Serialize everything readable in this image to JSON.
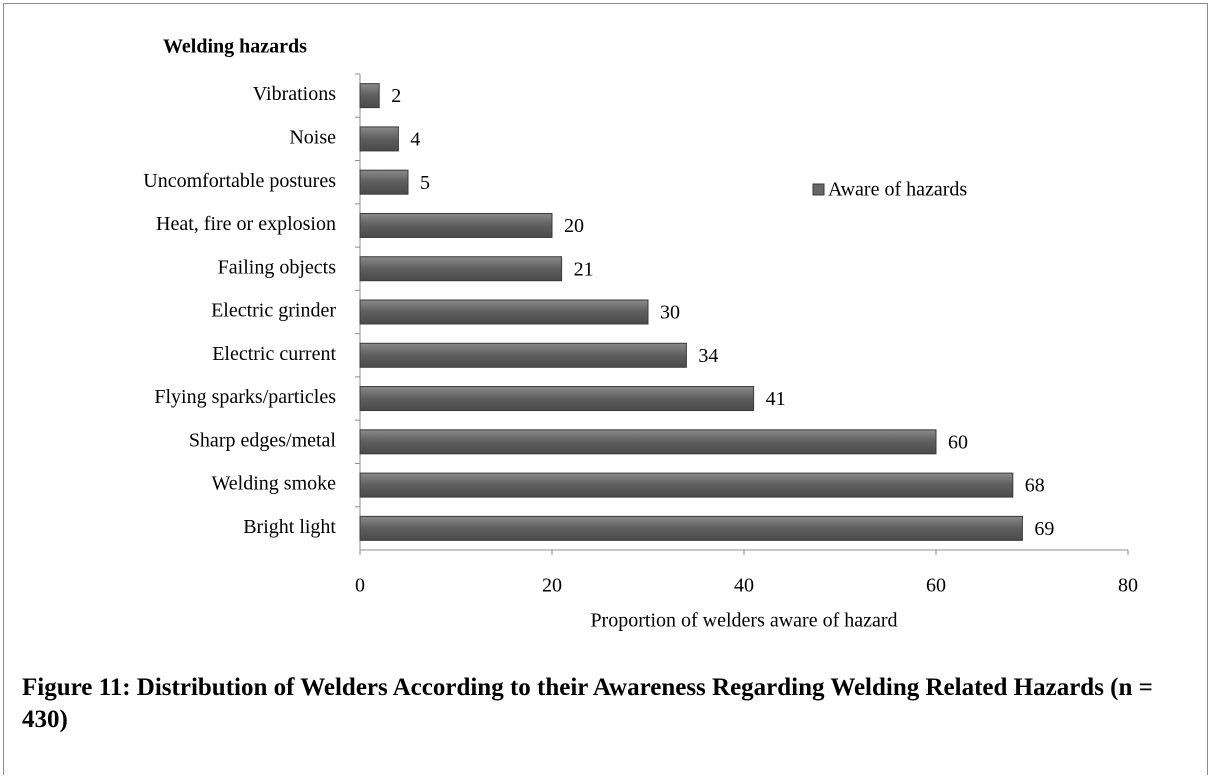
{
  "chart_data": {
    "type": "bar",
    "orientation": "horizontal",
    "y_axis_title": "Welding hazards",
    "x_axis_label": "Proportion of welders aware of hazard",
    "caption": "Figure 11: Distribution of Welders According to their Awareness Regarding Welding Related Hazards (n = 430)",
    "categories": [
      "Vibrations",
      "Noise",
      "Uncomfortable postures",
      "Heat, fire or explosion",
      "Failing objects",
      "Electric grinder",
      "Electric current",
      "Flying sparks/particles",
      "Sharp edges/metal",
      "Welding smoke",
      "Bright light"
    ],
    "series": [
      {
        "name": "Aware of hazards",
        "color": "#676767",
        "values": [
          2,
          4,
          5,
          20,
          21,
          30,
          34,
          41,
          60,
          68,
          69
        ]
      }
    ],
    "xlim": [
      0,
      80
    ],
    "xticks": [
      0,
      20,
      40,
      60,
      80
    ],
    "grid": false
  }
}
